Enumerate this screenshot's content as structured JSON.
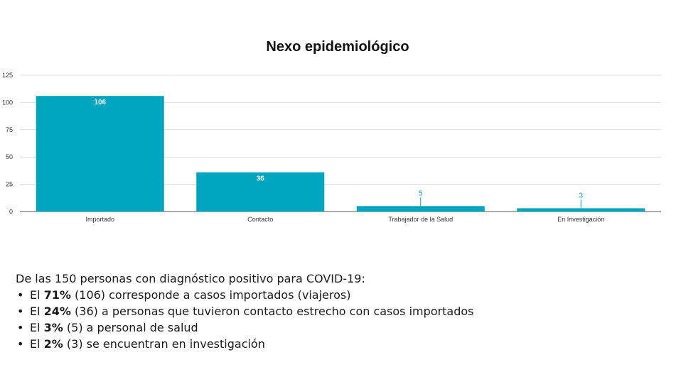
{
  "chart_data": {
    "type": "bar",
    "title": "Nexo epidemiológico",
    "categories": [
      "Importado",
      "Contacto",
      "Trabajador de la Salud",
      "En Investigación"
    ],
    "values": [
      106,
      36,
      5,
      3
    ],
    "data_labels": [
      "106",
      "36",
      "5",
      "3"
    ],
    "yticks": [
      0,
      25,
      50,
      75,
      100,
      125
    ],
    "ytick_labels": [
      "0",
      "25",
      "50",
      "75",
      "100",
      "125"
    ],
    "ylim": [
      0,
      125
    ],
    "xlabel": "",
    "ylabel": "",
    "grid": true,
    "bar_color": "#00a6c0",
    "label_color": "#00a6c0"
  },
  "summary": {
    "intro": "De las 150 personas con diagnóstico positivo para COVID-19:",
    "bullet_char": "•",
    "items": [
      {
        "pre": "El ",
        "pct": "71%",
        "post": " (106) corresponde a casos importados (viajeros)"
      },
      {
        "pre": "El ",
        "pct": "24%",
        "post": " (36) a personas que tuvieron contacto estrecho con casos importados"
      },
      {
        "pre": "El ",
        "pct": "3%",
        "post": " (5) a personal de salud"
      },
      {
        "pre": "El ",
        "pct": "2%",
        "post": " (3) se encuentran en investigación"
      }
    ]
  }
}
